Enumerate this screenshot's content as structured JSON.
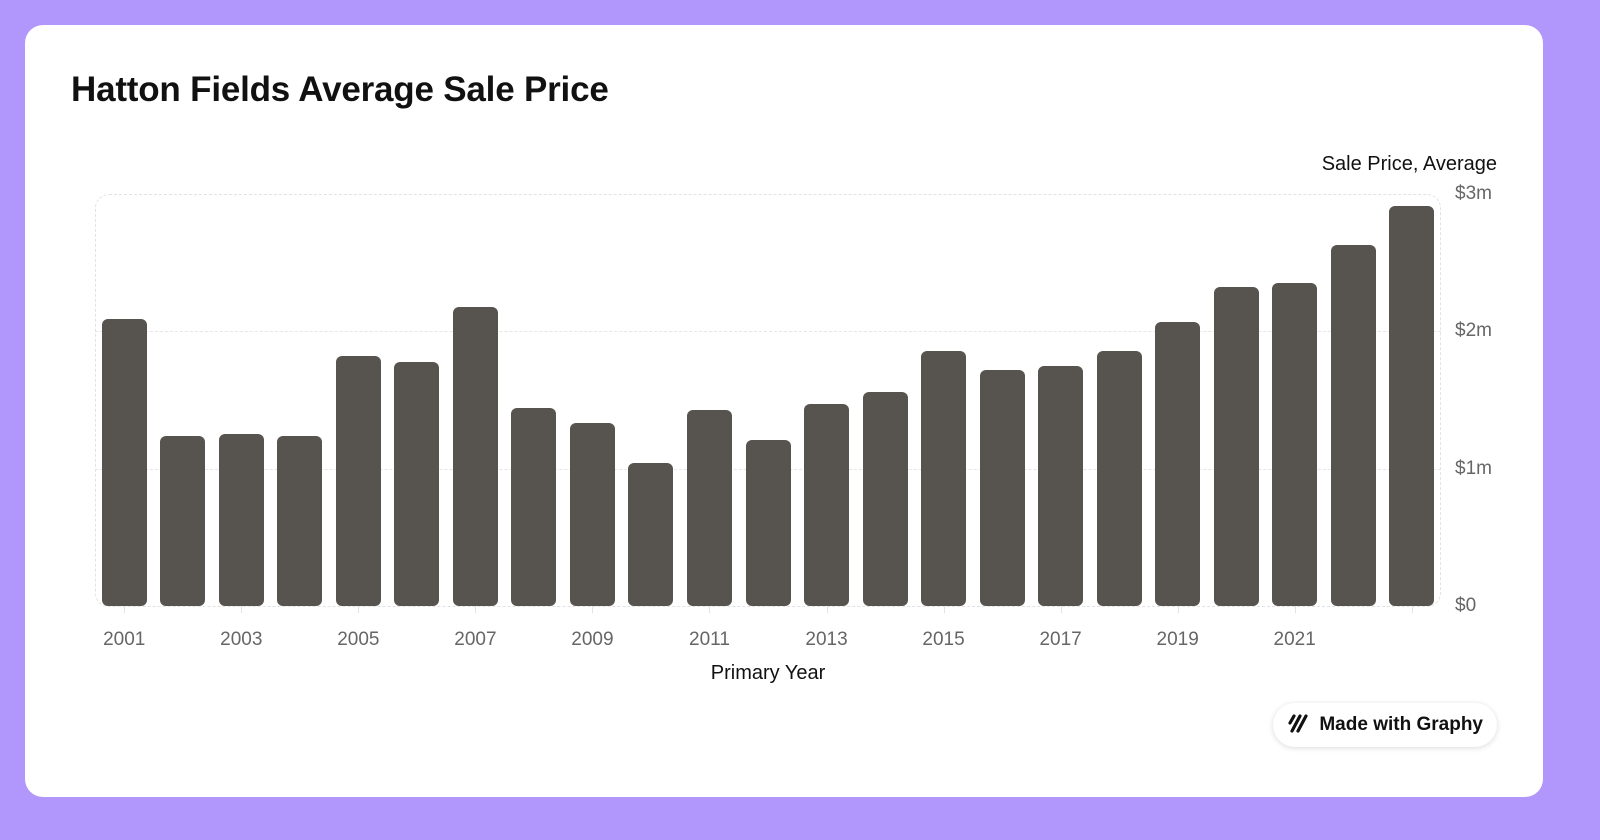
{
  "title": "Hatton Fields Average Sale Price",
  "series_label": "Sale Price, Average",
  "x_axis_label": "Primary Year",
  "y_ticks": [
    "$3m",
    "$2m",
    "$1m",
    "$0"
  ],
  "x_ticks": [
    "2001",
    "2003",
    "2005",
    "2007",
    "2009",
    "2011",
    "2013",
    "2015",
    "2017",
    "2019",
    "2021"
  ],
  "badge": {
    "label": "Made with Graphy",
    "icon": "graphy-logo-icon"
  },
  "colors": {
    "background": "#b197fc",
    "bar": "#57534e",
    "card": "#ffffff"
  },
  "chart_data": {
    "type": "bar",
    "title": "Hatton Fields Average Sale Price",
    "xlabel": "Primary Year",
    "ylabel": "Sale Price, Average",
    "ylim": [
      0,
      3000000
    ],
    "y_ticks": [
      0,
      1000000,
      2000000,
      3000000
    ],
    "grid": true,
    "legend": "none",
    "categories": [
      "2001",
      "2002",
      "2003",
      "2004",
      "2005",
      "2006",
      "2007",
      "2008",
      "2009",
      "2010",
      "2011",
      "2012",
      "2013",
      "2014",
      "2015",
      "2016",
      "2017",
      "2018",
      "2019",
      "2020",
      "2021",
      "2022",
      "2023"
    ],
    "values": [
      2090000,
      1240000,
      1250000,
      1240000,
      1820000,
      1780000,
      2180000,
      1440000,
      1330000,
      1040000,
      1430000,
      1210000,
      1470000,
      1560000,
      1860000,
      1720000,
      1750000,
      1860000,
      2070000,
      2320000,
      2350000,
      2630000,
      2910000
    ]
  }
}
